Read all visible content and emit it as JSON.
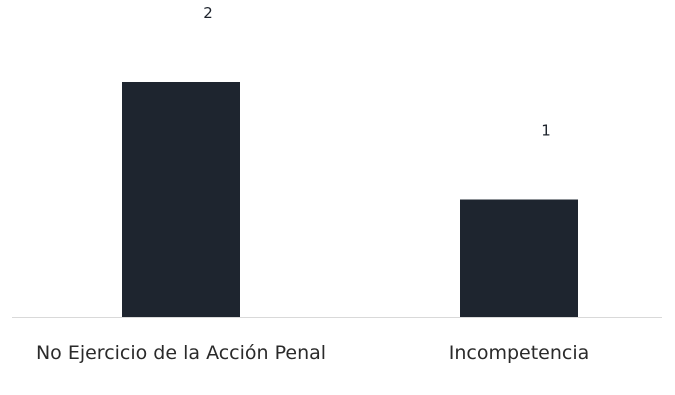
{
  "chart_data": {
    "type": "bar",
    "categories": [
      "No Ejercicio de la Acción Penal",
      "Incompetencia"
    ],
    "values": [
      2,
      1
    ],
    "data_labels": [
      "2",
      "1"
    ],
    "title": "",
    "xlabel": "",
    "ylabel": "",
    "ylim": [
      0,
      2
    ],
    "grid": false,
    "legend": "none",
    "colors": {
      "bar": "#1e252f",
      "axis": "#d9d9d9",
      "label_text": "#2a2a2a",
      "value_text": "#1d232c"
    }
  }
}
